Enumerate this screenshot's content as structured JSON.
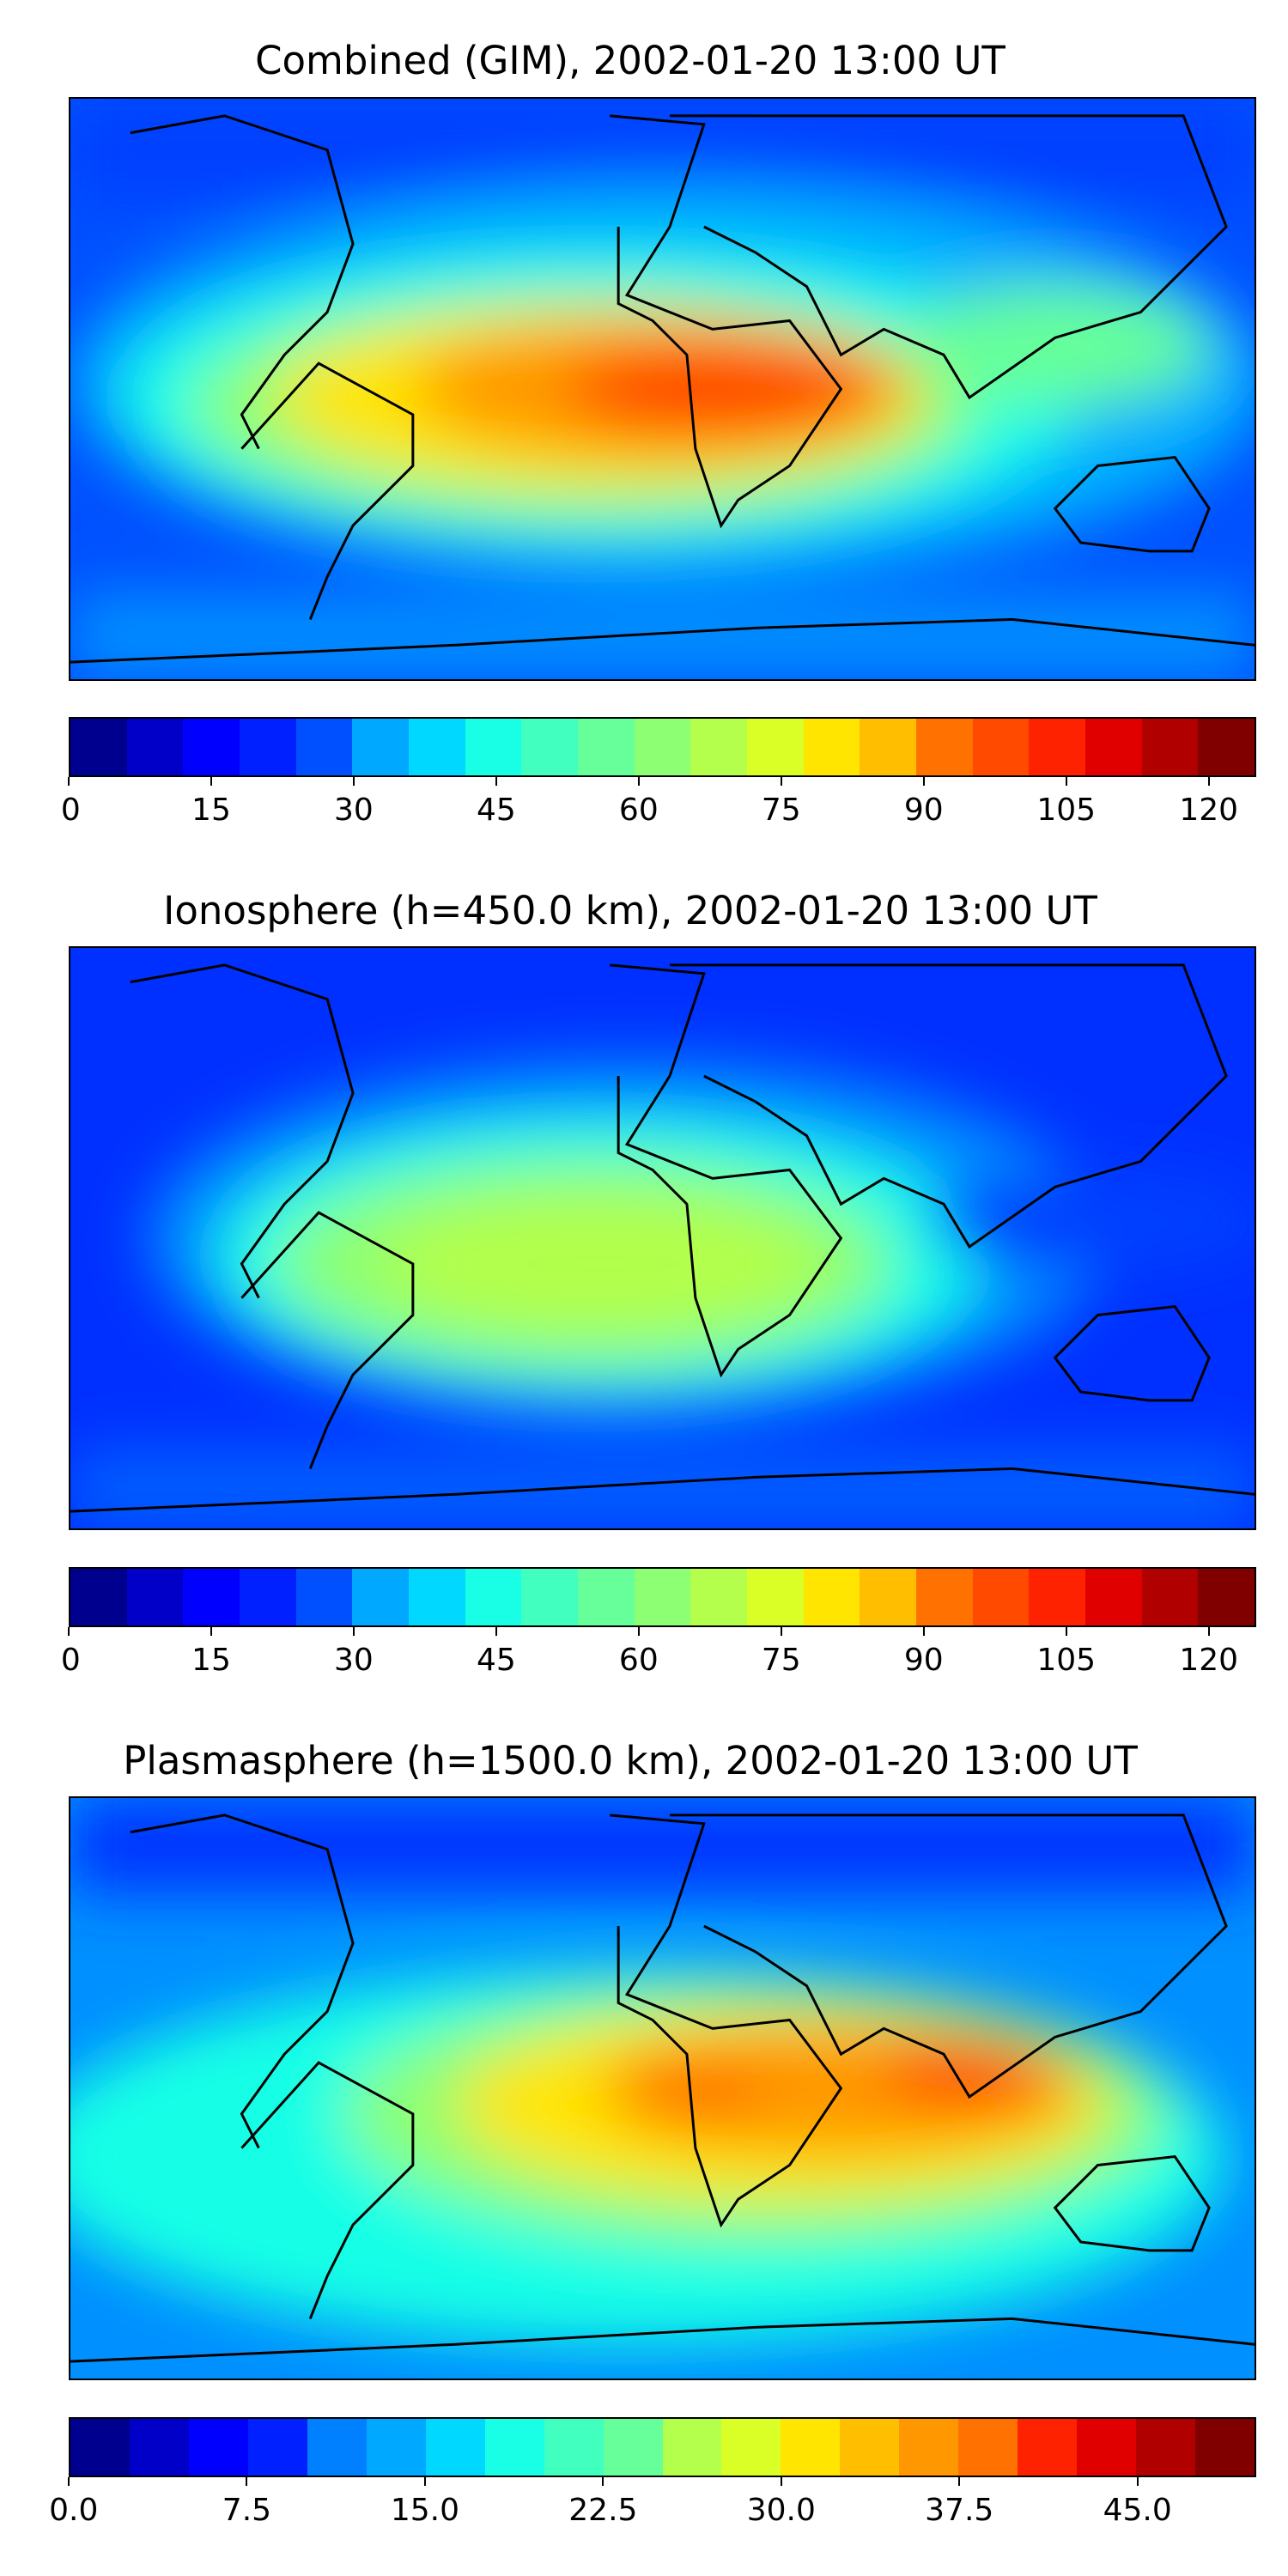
{
  "time": "2002-01-20 13:00 UT",
  "colormap": [
    "#00008f",
    "#0000c8",
    "#0000ff",
    "#0020ff",
    "#0050ff",
    "#0080ff",
    "#00a8ff",
    "#00d8ff",
    "#19ffe6",
    "#40ffbf",
    "#66ff99",
    "#8cff73",
    "#b3ff4c",
    "#d9ff26",
    "#ffe500",
    "#ffbf00",
    "#ff9800",
    "#ff7100",
    "#ff4a00",
    "#ff2200",
    "#e00000",
    "#b00000",
    "#800000"
  ],
  "panels": [
    {
      "title": "Combined (GIM), 2002-01-20 13:00 UT",
      "colorbar": {
        "min": 0,
        "max": 125,
        "ticks": [
          "0",
          "15",
          "30",
          "45",
          "60",
          "75",
          "90",
          "105",
          "120"
        ],
        "tick_values": [
          0,
          15,
          30,
          45,
          60,
          75,
          90,
          105,
          120
        ]
      },
      "field_peak_region": "tropical Africa / equatorial Atlantic"
    },
    {
      "title": "Ionosphere  (h=450.0 km), 2002-01-20 13:00 UT",
      "colorbar": {
        "min": 0,
        "max": 125,
        "ticks": [
          "0",
          "15",
          "30",
          "45",
          "60",
          "75",
          "90",
          "105",
          "120"
        ],
        "tick_values": [
          0,
          15,
          30,
          45,
          60,
          75,
          90,
          105,
          120
        ]
      },
      "field_peak_region": "Africa and South America"
    },
    {
      "title": "Plasmasphere (h=1500.0 km), 2002-01-20 13:00 UT",
      "colorbar": {
        "min": 0,
        "max": 50,
        "ticks": [
          "0.0",
          "7.5",
          "15.0",
          "22.5",
          "30.0",
          "37.5",
          "45.0"
        ],
        "tick_values": [
          0,
          7.5,
          15,
          22.5,
          30,
          37.5,
          45
        ]
      },
      "field_peak_region": "India / Southeast Asia"
    }
  ]
}
